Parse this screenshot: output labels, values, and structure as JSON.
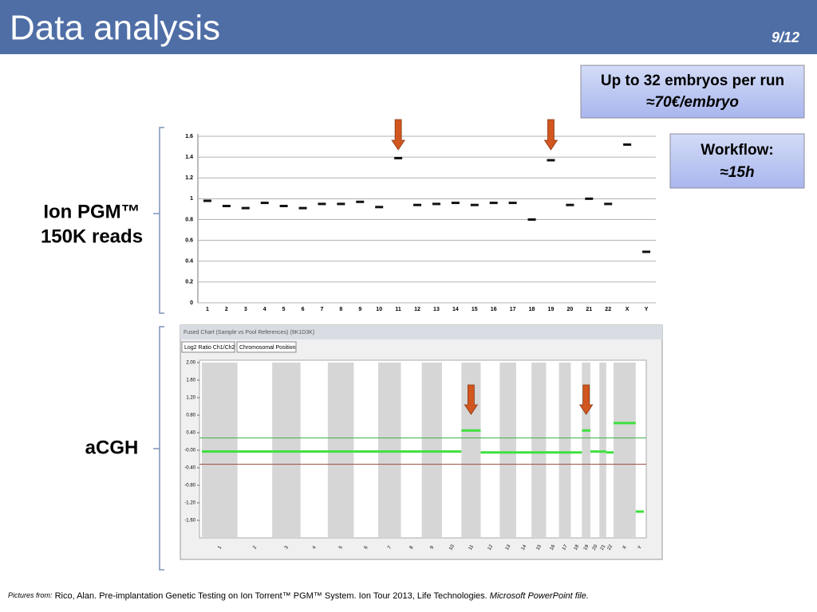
{
  "header": {
    "title": "Data analysis",
    "page": "9/12"
  },
  "boxes": [
    {
      "lines": [
        "Up to 32 embryos per run",
        "≈70€/embryo"
      ]
    },
    {
      "lines": [
        "Workflow:",
        "≈15h"
      ]
    }
  ],
  "labels": {
    "pgm": [
      "Ion PGM™",
      "150K reads"
    ],
    "acgh": "aCGH"
  },
  "pgm_chart": {
    "type": "scatter",
    "categories": [
      "1",
      "2",
      "3",
      "4",
      "5",
      "6",
      "7",
      "8",
      "9",
      "10",
      "11",
      "12",
      "13",
      "14",
      "15",
      "16",
      "17",
      "18",
      "19",
      "20",
      "21",
      "22",
      "X",
      "Y"
    ],
    "values": [
      0.98,
      0.93,
      0.91,
      0.96,
      0.93,
      0.91,
      0.95,
      0.95,
      0.97,
      0.92,
      1.39,
      0.94,
      0.95,
      0.96,
      0.94,
      0.96,
      0.96,
      0.8,
      1.37,
      0.94,
      1.0,
      0.95,
      1.52,
      0.49
    ],
    "ylim": [
      0,
      1.6
    ],
    "yticks": [
      0,
      0.2,
      0.4,
      0.6,
      0.8,
      1,
      1.2,
      1.4,
      1.6
    ],
    "color": "#111111",
    "grid": true
  },
  "acgh_chart": {
    "type": "segments",
    "window_title": "Fused Chart (Sample vs Pool References) (9K1D3K)",
    "controls": [
      "Log2 Ratio Ch1/Ch2",
      "Chromosomal Position"
    ],
    "categories": [
      "1",
      "2",
      "3",
      "4",
      "5",
      "6",
      "7",
      "8",
      "9",
      "10",
      "11",
      "12",
      "13",
      "14",
      "15",
      "16",
      "17",
      "18",
      "19",
      "20",
      "21",
      "22",
      "X",
      "Y"
    ],
    "values": [
      -0.03,
      -0.03,
      -0.03,
      -0.03,
      -0.03,
      -0.03,
      -0.03,
      -0.03,
      -0.03,
      -0.03,
      0.45,
      -0.05,
      -0.05,
      -0.05,
      -0.05,
      -0.05,
      -0.05,
      -0.05,
      0.45,
      -0.03,
      -0.03,
      -0.05,
      0.62,
      -1.4
    ],
    "upper_threshold": 0.28,
    "lower_threshold": -0.32,
    "ylim": [
      -2,
      2
    ],
    "yticks": [
      {
        "value": 2,
        "label": "2.00"
      },
      {
        "value": 1.6,
        "label": "1.60"
      },
      {
        "value": 1.2,
        "label": "1.20"
      },
      {
        "value": 0.8,
        "label": "0.80"
      },
      {
        "value": 0.4,
        "label": "0.40"
      },
      {
        "value": 0,
        "label": "-0.00"
      },
      {
        "value": -0.4,
        "label": "-0.40"
      },
      {
        "value": -0.8,
        "label": "-0.80"
      },
      {
        "value": -1.2,
        "label": "-1.20"
      },
      {
        "value": -1.6,
        "label": "-1.60"
      }
    ],
    "color": "#3ee03e"
  },
  "footer": {
    "prefix": "Pictures from:",
    "citation": "Rico, Alan. Pre-implantation Genetic Testing on Ion Torrent™ PGM™ System.  Ion Tour 2013, Life Technologies.",
    "source": "Microsoft PowerPoint file."
  }
}
